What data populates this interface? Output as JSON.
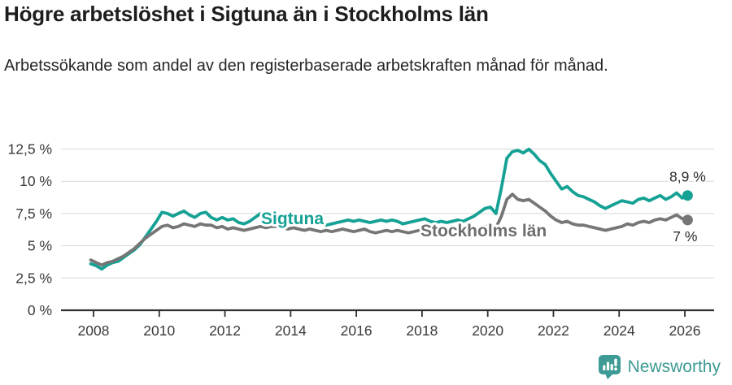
{
  "header": {
    "title": "Högre arbetslöshet i Sigtuna än i Stockholms län",
    "subtitle": "Arbetssökande som andel av den registerbaserade arbetskraften månad för månad."
  },
  "footer": {
    "brand": "Newsworthy",
    "logo_icon": "bar-chart-speech-bubble-icon",
    "brand_color": "#3d9a94"
  },
  "colors": {
    "sigtuna_teal": "#16a195",
    "stockholm_gray": "#767676",
    "gridline": "#d8d8d8",
    "axis": "#2e2e2e",
    "tick_text": "#3a3a3a",
    "annotation_text": "#2e2e2e",
    "inline_label_gray": "#6d6d6d"
  },
  "chart_data": {
    "type": "line",
    "title": "Högre arbetslöshet i Sigtuna än i Stockholms län",
    "subtitle": "Arbetssökande som andel av den registerbaserade arbetskraften månad för månad.",
    "grid": true,
    "legend_position": "inline-labels",
    "x_start": 2007.9167,
    "x_step_years": 0.166667,
    "xlim": [
      2007.5,
      2026.9
    ],
    "ylim": [
      0,
      13.6
    ],
    "x_ticks": [
      2008,
      2010,
      2012,
      2014,
      2016,
      2018,
      2020,
      2022,
      2024,
      2026
    ],
    "y_ticks": [
      {
        "value": 0,
        "label": "0 %"
      },
      {
        "value": 2.5,
        "label": "2,5 %"
      },
      {
        "value": 5,
        "label": "5 %"
      },
      {
        "value": 7.5,
        "label": "7,5 %"
      },
      {
        "value": 10,
        "label": "10 %"
      },
      {
        "value": 12.5,
        "label": "12,5 %"
      }
    ],
    "series": [
      {
        "name": "Sigtuna",
        "color": "#16a195",
        "end_label": "8,9 %",
        "end_value": 8.9,
        "values": [
          3.6,
          3.45,
          3.2,
          3.5,
          3.7,
          3.8,
          4.1,
          4.4,
          4.7,
          5.1,
          5.7,
          6.3,
          6.9,
          7.6,
          7.5,
          7.3,
          7.5,
          7.7,
          7.4,
          7.2,
          7.5,
          7.6,
          7.2,
          7.0,
          7.2,
          7.0,
          7.1,
          6.8,
          6.7,
          6.9,
          7.2,
          7.5,
          7.3,
          7.1,
          7.2,
          7.1,
          7.0,
          7.0,
          6.9,
          6.8,
          6.9,
          6.8,
          6.7,
          6.6,
          6.7,
          6.8,
          6.9,
          7.0,
          6.9,
          7.0,
          6.9,
          6.8,
          6.9,
          7.0,
          6.9,
          7.0,
          6.9,
          6.7,
          6.8,
          6.9,
          7.0,
          7.1,
          6.9,
          6.8,
          6.9,
          6.8,
          6.9,
          7.0,
          6.9,
          7.1,
          7.3,
          7.6,
          7.9,
          8.0,
          7.5,
          9.5,
          11.8,
          12.3,
          12.4,
          12.2,
          12.5,
          12.1,
          11.6,
          11.3,
          10.6,
          10.0,
          9.4,
          9.6,
          9.2,
          8.9,
          8.8,
          8.6,
          8.4,
          8.1,
          7.9,
          8.1,
          8.3,
          8.5,
          8.4,
          8.3,
          8.6,
          8.7,
          8.5,
          8.7,
          8.9,
          8.6,
          8.8,
          9.1,
          8.7,
          8.9
        ]
      },
      {
        "name": "Stockholms län",
        "color": "#767676",
        "end_label": "7 %",
        "end_value": 7.0,
        "values": [
          3.9,
          3.7,
          3.5,
          3.7,
          3.8,
          4.0,
          4.2,
          4.5,
          4.8,
          5.2,
          5.6,
          5.9,
          6.2,
          6.5,
          6.6,
          6.4,
          6.5,
          6.7,
          6.6,
          6.5,
          6.7,
          6.6,
          6.6,
          6.4,
          6.5,
          6.3,
          6.4,
          6.3,
          6.2,
          6.3,
          6.4,
          6.5,
          6.4,
          6.5,
          6.5,
          6.4,
          6.3,
          6.4,
          6.3,
          6.2,
          6.3,
          6.2,
          6.1,
          6.2,
          6.1,
          6.2,
          6.3,
          6.2,
          6.1,
          6.2,
          6.3,
          6.1,
          6.0,
          6.1,
          6.2,
          6.1,
          6.2,
          6.1,
          6.0,
          6.1,
          6.2,
          6.2,
          6.1,
          6.2,
          6.1,
          6.2,
          6.3,
          6.2,
          6.3,
          6.4,
          6.3,
          6.4,
          6.5,
          6.5,
          6.4,
          7.3,
          8.6,
          9.0,
          8.6,
          8.5,
          8.6,
          8.3,
          8.0,
          7.7,
          7.3,
          7.0,
          6.8,
          6.9,
          6.7,
          6.6,
          6.6,
          6.5,
          6.4,
          6.3,
          6.2,
          6.3,
          6.4,
          6.5,
          6.7,
          6.6,
          6.8,
          6.9,
          6.8,
          7.0,
          7.1,
          7.0,
          7.2,
          7.4,
          7.1,
          7.0
        ]
      }
    ]
  }
}
